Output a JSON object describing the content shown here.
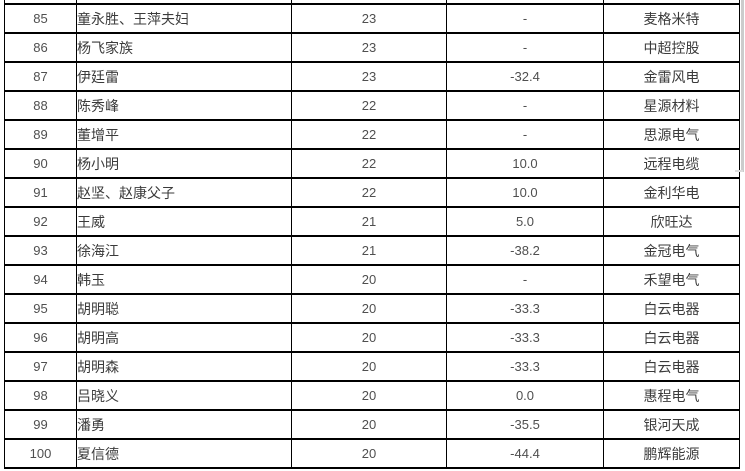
{
  "colors": {
    "border": "#000000",
    "text_numeric": "#4f4f4f",
    "text_cjk": "#3b3b3b",
    "scrollbar": "#cccccc",
    "background": "#ffffff"
  },
  "table": {
    "column_keys": [
      "rank",
      "name",
      "value",
      "change",
      "company"
    ],
    "rows": [
      {
        "rank": "85",
        "name": "童永胜、王萍夫妇",
        "value": "23",
        "change": "-",
        "company": "麦格米特"
      },
      {
        "rank": "86",
        "name": "杨飞家族",
        "value": "23",
        "change": "-",
        "company": "中超控股"
      },
      {
        "rank": "87",
        "name": "伊廷雷",
        "value": "23",
        "change": "-32.4",
        "company": "金雷风电"
      },
      {
        "rank": "88",
        "name": "陈秀峰",
        "value": "22",
        "change": "-",
        "company": "星源材料"
      },
      {
        "rank": "89",
        "name": "董增平",
        "value": "22",
        "change": "-",
        "company": "思源电气"
      },
      {
        "rank": "90",
        "name": "杨小明",
        "value": "22",
        "change": "10.0",
        "company": "远程电缆"
      },
      {
        "rank": "91",
        "name": "赵坚、赵康父子",
        "value": "22",
        "change": "10.0",
        "company": "金利华电"
      },
      {
        "rank": "92",
        "name": "王威",
        "value": "21",
        "change": "5.0",
        "company": "欣旺达"
      },
      {
        "rank": "93",
        "name": "徐海江",
        "value": "21",
        "change": "-38.2",
        "company": "金冠电气"
      },
      {
        "rank": "94",
        "name": "韩玉",
        "value": "20",
        "change": "-",
        "company": "禾望电气"
      },
      {
        "rank": "95",
        "name": "胡明聪",
        "value": "20",
        "change": "-33.3",
        "company": "白云电器"
      },
      {
        "rank": "96",
        "name": "胡明高",
        "value": "20",
        "change": "-33.3",
        "company": "白云电器"
      },
      {
        "rank": "97",
        "name": "胡明森",
        "value": "20",
        "change": "-33.3",
        "company": "白云电器"
      },
      {
        "rank": "98",
        "name": "吕晓义",
        "value": "20",
        "change": "0.0",
        "company": "惠程电气"
      },
      {
        "rank": "99",
        "name": "潘勇",
        "value": "20",
        "change": "-35.5",
        "company": "银河天成"
      },
      {
        "rank": "100",
        "name": "夏信德",
        "value": "20",
        "change": "-44.4",
        "company": "鹏辉能源"
      }
    ]
  }
}
